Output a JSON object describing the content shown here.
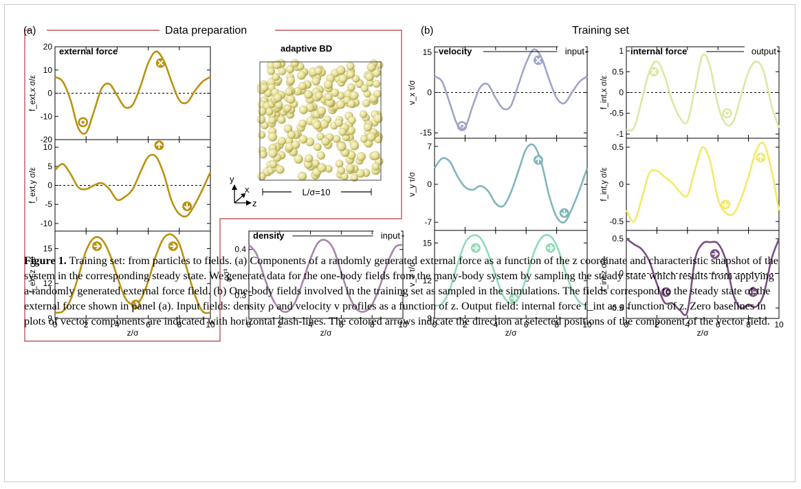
{
  "panel_a": {
    "tag": "(a)",
    "heading": "Data preparation",
    "snapshot_title": "adaptive BD",
    "box_label": "L/σ=10",
    "axes_labels": {
      "x": "x",
      "y": "y",
      "z": "z"
    }
  },
  "panel_b": {
    "tag": "(b)",
    "heading": "Training set"
  },
  "x_axis_label": "z/σ",
  "x_ticks": [
    "0",
    "2",
    "4",
    "6",
    "8",
    "10"
  ],
  "colors": {
    "external_force": "#b8920f",
    "density": "#a784ac",
    "vx": "#9fa4c8",
    "vy": "#7fb5bd",
    "vz": "#8fdbb6",
    "fint_x": "#dbe8a3",
    "fint_y": "#f3e969",
    "fint_z": "#7a4f85",
    "frame_red": "#b03a3a",
    "sphere": "#e4dd93"
  },
  "caption": {
    "label": "Figure 1.",
    "text": "Training set: from particles to fields. (a) Components of a randomly generated external force as a function of the z coordinate and characteristic snapshot of the system in the corresponding steady state. We generate data for the one-body fields from the many-body system by sampling the steady state which results from applying a randomly generated external force field. (b) One-body fields involved in the training set as sampled in the simulations. The fields correspond to the steady state of the external force shown in panel (a). Input fields: density ρ and velocity v profiles as a function of z. Output field: internal force f_int as a function of z. Zero baselines in plots of vector components are indicated with horizontal dash-lines. The colored arrows indicate the direction at selected positions of the component of the vector field."
  },
  "chart_data": [
    {
      "type": "line",
      "id": "fext_x",
      "title": "external force",
      "ylabel": "f_ext,x σ/ε",
      "xlabel": "",
      "xlim": [
        0,
        10
      ],
      "ylim": [
        -20,
        20
      ],
      "yticks": [
        "20",
        "10",
        "0",
        "-10",
        "-20"
      ],
      "zero_line": true,
      "x": [
        0,
        0.5,
        1,
        1.5,
        2,
        2.5,
        3,
        3.5,
        4,
        4.5,
        5,
        5.5,
        6,
        6.5,
        7,
        7.5,
        8,
        8.5,
        9,
        9.5,
        10
      ],
      "y": [
        7,
        5,
        -3,
        -15,
        -17,
        -8,
        2,
        4,
        -1,
        -6,
        -5,
        3,
        13,
        18,
        14,
        5,
        -3,
        -4,
        1,
        5,
        7
      ]
    },
    {
      "type": "line",
      "id": "fext_y",
      "title": "",
      "ylabel": "f_ext,y σ/ε",
      "xlabel": "",
      "xlim": [
        0,
        10
      ],
      "ylim": [
        -12,
        12
      ],
      "yticks": [
        "10",
        "5",
        "0",
        "-5",
        "-10"
      ],
      "zero_line": true,
      "x": [
        0,
        0.5,
        1,
        1.5,
        2,
        2.5,
        3,
        3.5,
        4,
        4.5,
        5,
        5.5,
        6,
        6.5,
        7,
        7.5,
        8,
        8.5,
        9,
        9.5,
        10
      ],
      "y": [
        4,
        5.6,
        3,
        -0.5,
        -1,
        0,
        0.6,
        -1,
        -3.8,
        -3,
        -1,
        3.5,
        7.5,
        7.5,
        3,
        -4,
        -7.5,
        -8,
        -5,
        -1,
        3.5
      ]
    },
    {
      "type": "line",
      "id": "fext_z",
      "title": "",
      "ylabel": "f_ext,z σ/ε",
      "xlabel": "z/σ",
      "xlim": [
        0,
        10
      ],
      "ylim": [
        9,
        16.5
      ],
      "yticks": [
        "15",
        "12",
        "9"
      ],
      "zero_line": false,
      "x": [
        0,
        0.5,
        1,
        1.5,
        2,
        2.5,
        3,
        3.5,
        4,
        4.5,
        5,
        5.5,
        6,
        6.5,
        7,
        7.5,
        8,
        8.5,
        9,
        9.5,
        10
      ],
      "y": [
        9.5,
        9.6,
        10.6,
        12.6,
        14.8,
        15.9,
        15.8,
        14.6,
        12.6,
        10.8,
        10.2,
        10.6,
        12.2,
        14.4,
        15.9,
        16.2,
        15.4,
        13.2,
        11,
        9.6,
        9.5
      ]
    },
    {
      "type": "line",
      "id": "density",
      "title": "density",
      "ylabel": "ρσ³",
      "xlabel": "z/σ",
      "xlim": [
        0,
        10
      ],
      "ylim": [
        0.25,
        0.44
      ],
      "yticks": [
        "0.4",
        "0.3"
      ],
      "zero_line": false,
      "x": [
        0,
        0.5,
        1,
        1.5,
        2,
        2.5,
        3,
        3.5,
        4,
        4.5,
        5,
        5.5,
        6,
        6.5,
        7,
        7.5,
        8,
        8.5,
        9,
        9.5,
        10
      ],
      "y": [
        0.41,
        0.39,
        0.34,
        0.295,
        0.27,
        0.265,
        0.285,
        0.33,
        0.38,
        0.415,
        0.42,
        0.4,
        0.35,
        0.3,
        0.27,
        0.265,
        0.28,
        0.32,
        0.37,
        0.405,
        0.41
      ]
    },
    {
      "type": "line",
      "id": "vx",
      "title": "velocity",
      "ylabel": "v_x τ/σ",
      "xlabel": "",
      "xlim": [
        0,
        10
      ],
      "ylim": [
        -17,
        17
      ],
      "yticks": [
        "15",
        "0",
        "-15"
      ],
      "zero_line": true,
      "x": [
        0,
        0.5,
        1,
        1.5,
        2,
        2.5,
        3,
        3.5,
        4,
        4.5,
        5,
        5.5,
        6,
        6.5,
        7,
        7.5,
        8,
        8.5,
        9,
        9.5,
        10
      ],
      "y": [
        6,
        4,
        -4,
        -12,
        -13,
        -5,
        2,
        3,
        -2,
        -6,
        -5,
        3,
        11,
        16,
        13,
        5,
        -2,
        -4,
        0,
        4,
        6
      ]
    },
    {
      "type": "line",
      "id": "vy",
      "title": "",
      "ylabel": "v_y τ/σ",
      "xlabel": "",
      "xlim": [
        0,
        10
      ],
      "ylim": [
        -8.5,
        8.5
      ],
      "yticks": [
        "7",
        "0",
        "-7"
      ],
      "zero_line": false,
      "x": [
        0,
        0.5,
        1,
        1.5,
        2,
        2.5,
        3,
        3.5,
        4,
        4.5,
        5,
        5.5,
        6,
        6.5,
        7,
        7.5,
        8,
        8.5,
        9,
        9.5,
        10
      ],
      "y": [
        3,
        4.8,
        4.2,
        1.5,
        -0.5,
        -1,
        -0.3,
        -1.2,
        -3.5,
        -4,
        -1.5,
        2.5,
        6.5,
        7.2,
        4,
        -2,
        -6,
        -7,
        -4.5,
        -1,
        3
      ]
    },
    {
      "type": "line",
      "id": "vz",
      "title": "",
      "ylabel": "v_z τ/σ",
      "xlabel": "z/σ",
      "xlim": [
        0,
        10
      ],
      "ylim": [
        9,
        16
      ],
      "yticks": [
        "15",
        "12",
        "9"
      ],
      "zero_line": false,
      "x": [
        0,
        0.5,
        1,
        1.5,
        2,
        2.5,
        3,
        3.5,
        4,
        4.5,
        5,
        5.5,
        6,
        6.5,
        7,
        7.5,
        8,
        8.5,
        9,
        9.5,
        10
      ],
      "y": [
        10,
        10.2,
        11.3,
        13.3,
        15,
        15.6,
        15.4,
        14.2,
        12.4,
        10.8,
        10.2,
        10.6,
        12.2,
        14.2,
        15.4,
        15.6,
        14.8,
        13,
        11.3,
        10.3,
        10
      ]
    },
    {
      "type": "line",
      "id": "fint_x",
      "title": "internal force",
      "ylabel": "f_int,x σ/ε",
      "xlabel": "",
      "xlim": [
        0,
        10
      ],
      "ylim": [
        -1.1,
        1.1
      ],
      "yticks": [
        "1",
        "0.5",
        "0",
        "-0.5",
        "-1"
      ],
      "zero_line": true,
      "x": [
        0,
        0.5,
        1,
        1.5,
        2,
        2.5,
        3,
        3.5,
        4,
        4.5,
        5,
        5.5,
        6,
        6.5,
        7,
        7.5,
        8,
        8.5,
        9,
        9.5,
        10
      ],
      "y": [
        -0.9,
        -0.85,
        -0.2,
        0.5,
        0.75,
        0.4,
        -0.2,
        -0.6,
        -0.7,
        0.1,
        0.9,
        0.6,
        -0.3,
        -0.75,
        -0.7,
        -0.1,
        0.5,
        0.75,
        0.5,
        -0.3,
        -0.85
      ]
    },
    {
      "type": "line",
      "id": "fint_y",
      "title": "",
      "ylabel": "f_int,y σ/ε",
      "xlabel": "",
      "xlim": [
        0,
        10
      ],
      "ylim": [
        -0.62,
        0.62
      ],
      "yticks": [
        "0.5",
        "0",
        "-0.5"
      ],
      "zero_line": false,
      "x": [
        0,
        0.5,
        1,
        1.5,
        2,
        2.5,
        3,
        3.5,
        4,
        4.5,
        5,
        5.5,
        6,
        6.5,
        7,
        7.5,
        8,
        8.5,
        9,
        9.5,
        10
      ],
      "y": [
        -0.35,
        -0.5,
        -0.2,
        0.15,
        0.18,
        0.1,
        0.02,
        -0.1,
        -0.15,
        0.2,
        0.5,
        0.3,
        -0.2,
        -0.38,
        -0.4,
        -0.2,
        0.1,
        0.45,
        0.55,
        0.2,
        -0.35
      ]
    },
    {
      "type": "line",
      "id": "fint_z",
      "title": "",
      "ylabel": "f_int,z σ/ε",
      "xlabel": "z/σ",
      "xlim": [
        0,
        10
      ],
      "ylim": [
        -0.65,
        0.62
      ],
      "yticks": [
        "0.5",
        "0",
        "-0.5"
      ],
      "zero_line": true,
      "x": [
        0,
        0.5,
        1,
        1.5,
        2,
        2.5,
        3,
        3.5,
        4,
        4.5,
        5,
        5.5,
        6,
        6.5,
        7,
        7.5,
        8,
        8.5,
        9,
        9.5,
        10
      ],
      "y": [
        0.5,
        0.42,
        0.35,
        0.18,
        -0.15,
        -0.42,
        -0.43,
        -0.53,
        -0.55,
        0.2,
        0.43,
        0.45,
        0.43,
        0.2,
        -0.3,
        -0.5,
        -0.45,
        -0.48,
        -0.3,
        0.2,
        0.5
      ]
    }
  ],
  "markers": [
    {
      "chart": "fext_x",
      "x": 1.8,
      "y": -12.5,
      "icon": "circle-dot-icon"
    },
    {
      "chart": "fext_x",
      "x": 6.8,
      "y": 13,
      "icon": "circle-x-icon"
    },
    {
      "chart": "fext_y",
      "x": 6.7,
      "y": 10.5,
      "icon": "arrow-up-icon"
    },
    {
      "chart": "fext_y",
      "x": 8.5,
      "y": -5.5,
      "icon": "arrow-down-icon"
    },
    {
      "chart": "fext_z",
      "x": 2.7,
      "y": 15.2,
      "icon": "arrow-right-icon"
    },
    {
      "chart": "fext_z",
      "x": 5.2,
      "y": 10.2,
      "icon": "arrow-right-icon"
    },
    {
      "chart": "fext_z",
      "x": 7.6,
      "y": 15.2,
      "icon": "arrow-right-icon"
    },
    {
      "chart": "vx",
      "x": 1.8,
      "y": -12.5,
      "icon": "circle-dot-icon"
    },
    {
      "chart": "vx",
      "x": 6.8,
      "y": 12,
      "icon": "circle-x-icon"
    },
    {
      "chart": "vy",
      "x": 6.8,
      "y": 4.5,
      "icon": "arrow-up-icon"
    },
    {
      "chart": "vy",
      "x": 8.5,
      "y": -5.3,
      "icon": "arrow-down-icon"
    },
    {
      "chart": "vz",
      "x": 2.7,
      "y": 14.6,
      "icon": "arrow-right-icon"
    },
    {
      "chart": "vz",
      "x": 5.2,
      "y": 10.6,
      "icon": "arrow-right-icon"
    },
    {
      "chart": "vz",
      "x": 7.6,
      "y": 14.6,
      "icon": "arrow-right-icon"
    },
    {
      "chart": "fint_x",
      "x": 1.8,
      "y": 0.5,
      "icon": "circle-x-icon"
    },
    {
      "chart": "fint_x",
      "x": 6.6,
      "y": -0.5,
      "icon": "circle-dot-icon"
    },
    {
      "chart": "fint_y",
      "x": 6.5,
      "y": -0.27,
      "icon": "arrow-down-icon"
    },
    {
      "chart": "fint_y",
      "x": 8.8,
      "y": 0.36,
      "icon": "arrow-up-icon"
    },
    {
      "chart": "fint_z",
      "x": 2.6,
      "y": -0.27,
      "icon": "arrow-left-icon"
    },
    {
      "chart": "fint_z",
      "x": 5.8,
      "y": 0.28,
      "icon": "arrow-right-icon"
    },
    {
      "chart": "fint_z",
      "x": 8.3,
      "y": -0.27,
      "icon": "arrow-left-icon"
    }
  ]
}
